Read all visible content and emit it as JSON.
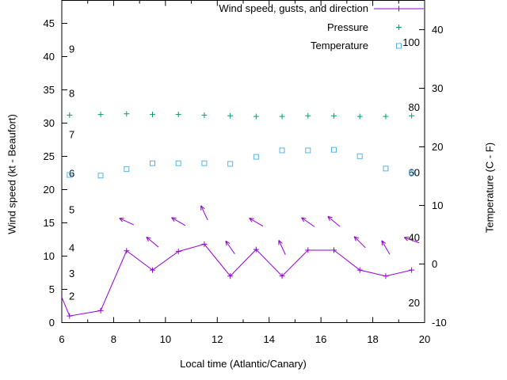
{
  "chart_data": {
    "type": "line",
    "xlabel": "Local time (Atlantic/Canary)",
    "ylabel_left": "Wind speed (kt - Beaufort)",
    "ylabel_right": "Temperature (C - F)",
    "x_range": [
      6,
      20
    ],
    "x_major_ticks": [
      6,
      8,
      10,
      12,
      14,
      16,
      18,
      20
    ],
    "left_ticks": [
      0,
      5,
      10,
      15,
      20,
      25,
      30,
      35,
      40,
      45
    ],
    "right_ticks": [
      -10,
      0,
      10,
      20,
      30,
      40
    ],
    "beaufort_labels": [
      {
        "label": "2",
        "kt": 3.9
      },
      {
        "label": "3",
        "kt": 7.3
      },
      {
        "label": "4",
        "kt": 11.2
      },
      {
        "label": "5",
        "kt": 16.9
      },
      {
        "label": "6",
        "kt": 22.4
      },
      {
        "label": "7",
        "kt": 28.2
      },
      {
        "label": "8",
        "kt": 34.4
      },
      {
        "label": "9",
        "kt": 41.1
      }
    ],
    "fahrenheit_labels": [
      20,
      40,
      60,
      80,
      100
    ],
    "colors": {
      "wind": "#9400d3",
      "pressure": "#009e73",
      "temperature": "#56b4e9",
      "axis": "#000000"
    },
    "legend": [
      {
        "label": "Wind speed, gusts, and direction",
        "symbol": "line-plus",
        "series": "wind"
      },
      {
        "label": "Pressure",
        "symbol": "plus",
        "series": "pressure"
      },
      {
        "label": "Temperature",
        "symbol": "open-square",
        "series": "temperature"
      }
    ],
    "series": [
      {
        "name": "wind-speed",
        "axis": "left",
        "color_key": "wind",
        "marker": "plus",
        "line": true,
        "lead_in": {
          "x": 6.0,
          "y": 3.8
        },
        "x": [
          6.3,
          7.5,
          8.5,
          9.5,
          10.5,
          11.5,
          12.5,
          13.5,
          14.5,
          15.5,
          16.5,
          17.5,
          18.5,
          19.5
        ],
        "y": [
          1.0,
          1.8,
          10.8,
          7.9,
          10.7,
          11.8,
          7.0,
          11.0,
          7.0,
          10.9,
          10.9,
          7.9,
          7.0,
          7.9
        ]
      },
      {
        "name": "pressure",
        "axis": "left",
        "color_key": "pressure",
        "marker": "plus",
        "line": false,
        "x": [
          6.3,
          7.5,
          8.5,
          9.5,
          10.5,
          11.5,
          12.5,
          13.5,
          14.5,
          15.5,
          16.5,
          17.5,
          18.5,
          19.5
        ],
        "y": [
          31.2,
          31.3,
          31.4,
          31.3,
          31.3,
          31.2,
          31.1,
          31.0,
          31.0,
          31.1,
          31.1,
          31.0,
          31.0,
          31.1
        ]
      },
      {
        "name": "temperature",
        "axis": "right",
        "color_key": "temperature",
        "marker": "square",
        "line": false,
        "x": [
          6.3,
          7.5,
          8.5,
          9.5,
          10.5,
          11.5,
          12.5,
          13.5,
          14.5,
          15.5,
          16.5,
          17.5,
          18.5,
          19.5
        ],
        "y": [
          15.2,
          15.1,
          16.2,
          17.2,
          17.2,
          17.2,
          17.1,
          18.3,
          19.4,
          19.4,
          19.5,
          18.4,
          16.3,
          15.6
        ]
      }
    ],
    "wind_arrows": [
      {
        "x": 8.5,
        "kt": 15.2,
        "angle": 155
      },
      {
        "x": 9.5,
        "kt": 12.1,
        "angle": 140
      },
      {
        "x": 10.5,
        "kt": 15.2,
        "angle": 150
      },
      {
        "x": 11.5,
        "kt": 16.5,
        "angle": 115
      },
      {
        "x": 12.5,
        "kt": 11.3,
        "angle": 125
      },
      {
        "x": 13.5,
        "kt": 15.1,
        "angle": 150
      },
      {
        "x": 14.5,
        "kt": 11.3,
        "angle": 115
      },
      {
        "x": 15.5,
        "kt": 15.1,
        "angle": 145
      },
      {
        "x": 16.5,
        "kt": 15.2,
        "angle": 140
      },
      {
        "x": 17.5,
        "kt": 12.1,
        "angle": 135
      },
      {
        "x": 18.5,
        "kt": 11.3,
        "angle": 120
      },
      {
        "x": 19.5,
        "kt": 12.4,
        "angle": 160
      }
    ]
  }
}
